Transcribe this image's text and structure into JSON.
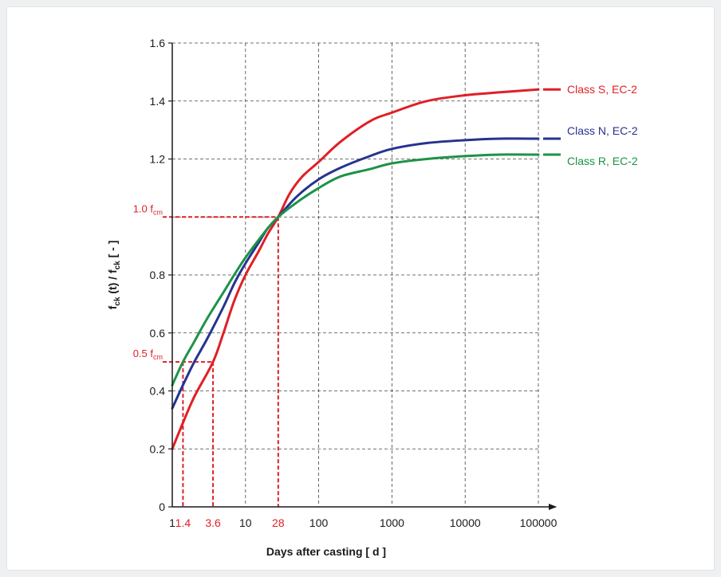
{
  "chart_data": {
    "type": "line",
    "x_scale": "log",
    "xlabel": "Days after casting [ d ]",
    "ylabel": {
      "f1": "f",
      "s1": "ck",
      "mid": " (t) / f",
      "s2": "ck",
      "unit": " [ - ]"
    },
    "xlim": [
      1,
      100000
    ],
    "ylim": [
      0,
      1.6
    ],
    "grid": true,
    "x_ticks": [
      {
        "value": 1,
        "label": "1",
        "color": "#1a1a1a"
      },
      {
        "value": 1.4,
        "label": "1.4",
        "color": "#e01f26"
      },
      {
        "value": 3.6,
        "label": "3.6",
        "color": "#e01f26"
      },
      {
        "value": 10,
        "label": "10",
        "color": "#1a1a1a"
      },
      {
        "value": 28,
        "label": "28",
        "color": "#e01f26"
      },
      {
        "value": 100,
        "label": "100",
        "color": "#1a1a1a"
      },
      {
        "value": 1000,
        "label": "1000",
        "color": "#1a1a1a"
      },
      {
        "value": 10000,
        "label": "10000",
        "color": "#1a1a1a"
      },
      {
        "value": 100000,
        "label": "100000",
        "color": "#1a1a1a"
      }
    ],
    "y_ticks": [
      {
        "value": 0,
        "label": "0"
      },
      {
        "value": 0.2,
        "label": "0.2"
      },
      {
        "value": 0.4,
        "label": "0.4"
      },
      {
        "value": 0.6,
        "label": "0.6"
      },
      {
        "value": 0.8,
        "label": "0.8"
      },
      {
        "value": 1.2,
        "label": "1.2"
      },
      {
        "value": 1.4,
        "label": "1.4"
      },
      {
        "value": 1.6,
        "label": "1.6"
      }
    ],
    "series": [
      {
        "name": "Class S, EC-2",
        "color": "#e01f26",
        "x": [
          1,
          1.4,
          2,
          3.6,
          5,
          7,
          10,
          15,
          20,
          28,
          40,
          60,
          100,
          200,
          500,
          1000,
          3000,
          10000,
          30000,
          100000
        ],
        "y": [
          0.2,
          0.29,
          0.38,
          0.5,
          0.6,
          0.71,
          0.8,
          0.88,
          0.94,
          1.0,
          1.08,
          1.14,
          1.19,
          1.26,
          1.33,
          1.36,
          1.4,
          1.42,
          1.43,
          1.44
        ]
      },
      {
        "name": "Class N, EC-2",
        "color": "#26338f",
        "x": [
          1,
          1.4,
          2,
          3,
          5,
          7,
          10,
          15,
          20,
          28,
          50,
          100,
          200,
          500,
          1000,
          3000,
          10000,
          30000,
          100000
        ],
        "y": [
          0.34,
          0.42,
          0.5,
          0.58,
          0.69,
          0.77,
          0.84,
          0.91,
          0.96,
          1.0,
          1.07,
          1.13,
          1.17,
          1.21,
          1.235,
          1.255,
          1.265,
          1.27,
          1.27
        ]
      },
      {
        "name": "Class R, EC-2",
        "color": "#1d9347",
        "x": [
          1,
          1.4,
          2,
          3,
          5,
          7,
          10,
          15,
          20,
          28,
          50,
          100,
          200,
          500,
          1000,
          3000,
          10000,
          30000,
          100000
        ],
        "y": [
          0.42,
          0.5,
          0.57,
          0.65,
          0.74,
          0.8,
          0.86,
          0.92,
          0.96,
          1.0,
          1.05,
          1.1,
          1.14,
          1.165,
          1.185,
          1.2,
          1.21,
          1.215,
          1.215
        ]
      }
    ],
    "reference_lines": [
      {
        "label_prefix": "1.0 f",
        "label_sub": "cm",
        "y": 1.0,
        "x_values": [
          28
        ],
        "color": "#e01f26"
      },
      {
        "label_prefix": "0.5 f",
        "label_sub": "cm",
        "y": 0.5,
        "x_values": [
          1.4,
          3.6
        ],
        "color": "#e01f26"
      }
    ]
  }
}
